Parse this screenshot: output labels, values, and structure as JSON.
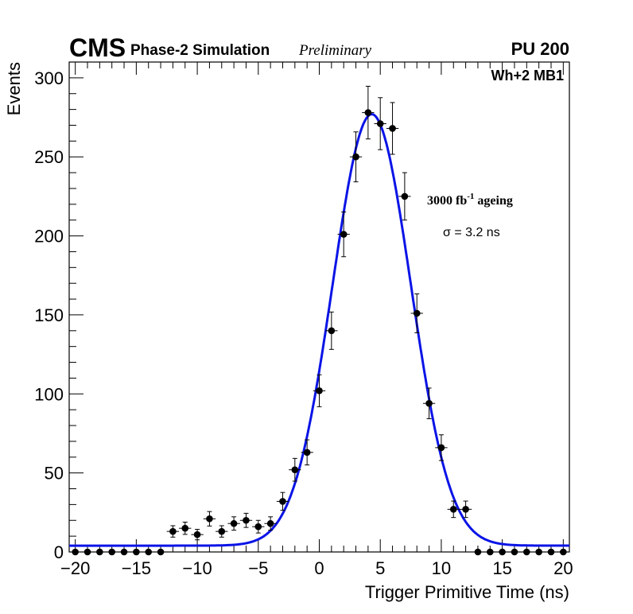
{
  "chart_data": {
    "type": "scatter",
    "header": {
      "experiment": "CMS",
      "label": "Phase-2 Simulation",
      "status": "Preliminary",
      "pileup": "PU 200"
    },
    "region": "Wh+2 MB1",
    "annotation_ageing": {
      "prefix": "3000 fb",
      "superscript": "-1",
      "suffix": " ageing"
    },
    "annotation_sigma": "σ = 3.2 ns",
    "xlabel": "Trigger Primitive Time (ns)",
    "ylabel": "Events",
    "xlim": [
      -20.5,
      20.5
    ],
    "ylim": [
      0,
      310
    ],
    "x_ticks": [
      -20,
      -15,
      -10,
      -5,
      0,
      5,
      10,
      15,
      20
    ],
    "x_tick_labels": [
      "−20",
      "−15",
      "−10",
      "−5",
      "0",
      "5",
      "10",
      "15",
      "20"
    ],
    "y_ticks": [
      0,
      50,
      100,
      150,
      200,
      250,
      300
    ],
    "y_tick_labels": [
      "0",
      "50",
      "100",
      "150",
      "200",
      "250",
      "300"
    ],
    "series": [
      {
        "name": "data",
        "x": [
          -20,
          -19,
          -18,
          -17,
          -16,
          -15,
          -14,
          -13,
          -12,
          -11,
          -10,
          -9,
          -8,
          -7,
          -6,
          -5,
          -4,
          -3,
          -2,
          -1,
          0,
          1,
          2,
          3,
          4,
          5,
          6,
          7,
          8,
          9,
          10,
          11,
          12,
          13,
          14,
          15,
          16,
          17,
          18,
          19,
          20
        ],
        "y": [
          0,
          0,
          0,
          0,
          0,
          0,
          0,
          0,
          13,
          15,
          11,
          21,
          13,
          18,
          20,
          16,
          18,
          32,
          52,
          63,
          102,
          140,
          201,
          250,
          278,
          271,
          268,
          225,
          151,
          94,
          66,
          27,
          27,
          0,
          0,
          0,
          0,
          0,
          0,
          0,
          0
        ]
      }
    ],
    "fit": {
      "name": "gaussian fit",
      "color": "#0a14e6",
      "amplitude": 273,
      "mean": 4.3,
      "sigma": 3.2,
      "baseline": 4
    },
    "marker_color": "#000000"
  }
}
